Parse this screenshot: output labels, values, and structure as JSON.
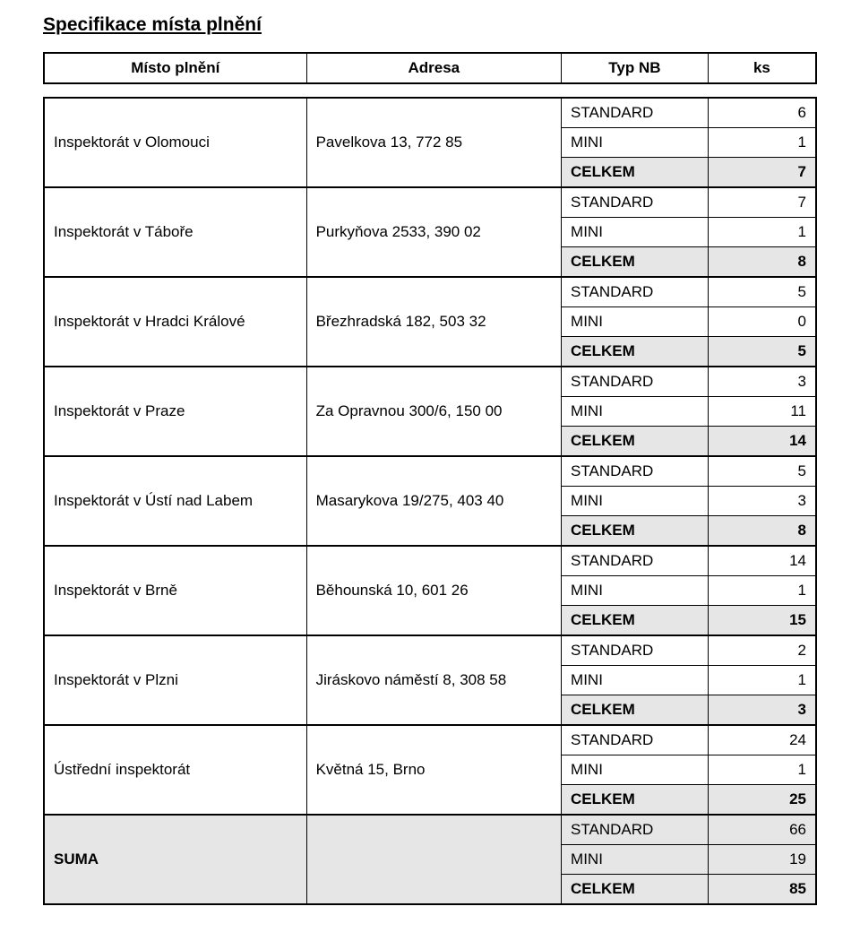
{
  "title": "Specifikace místa plnění",
  "labels": {
    "standard": "STANDARD",
    "mini": "MINI",
    "celkem": "CELKEM"
  },
  "header": {
    "col1": "Místo plnění",
    "col2": "Adresa",
    "col3": "Typ NB",
    "col4": "ks"
  },
  "groups": [
    {
      "name": "Inspektorát v Olomouci",
      "addr": "Pavelkova 13, 772 85",
      "standard": 6,
      "mini": 1,
      "celkem": 7
    },
    {
      "name": "Inspektorát v Táboře",
      "addr": "Purkyňova 2533, 390 02",
      "standard": 7,
      "mini": 1,
      "celkem": 8
    },
    {
      "name": "Inspektorát v Hradci Králové",
      "addr": "Březhradská 182, 503 32",
      "standard": 5,
      "mini": 0,
      "celkem": 5
    },
    {
      "name": "Inspektorát v Praze",
      "addr": "Za Opravnou 300/6, 150 00",
      "standard": 3,
      "mini": 11,
      "celkem": 14
    },
    {
      "name": "Inspektorát v Ústí nad Labem",
      "addr": "Masarykova 19/275, 403 40",
      "standard": 5,
      "mini": 3,
      "celkem": 8
    },
    {
      "name": "Inspektorát v Brně",
      "addr": "Běhounská 10, 601 26",
      "standard": 14,
      "mini": 1,
      "celkem": 15
    },
    {
      "name": "Inspektorát v Plzni",
      "addr": "Jiráskovo náměstí 8, 308 58",
      "standard": 2,
      "mini": 1,
      "celkem": 3
    },
    {
      "name": "Ústřední inspektorát",
      "addr": "Květná 15, Brno",
      "standard": 24,
      "mini": 1,
      "celkem": 25
    }
  ],
  "suma": {
    "name": "SUMA",
    "standard": 66,
    "mini": 19,
    "celkem": 85
  },
  "colors": {
    "shade": "#e6e6e6",
    "text": "#000000",
    "background": "#ffffff",
    "border": "#000000"
  }
}
